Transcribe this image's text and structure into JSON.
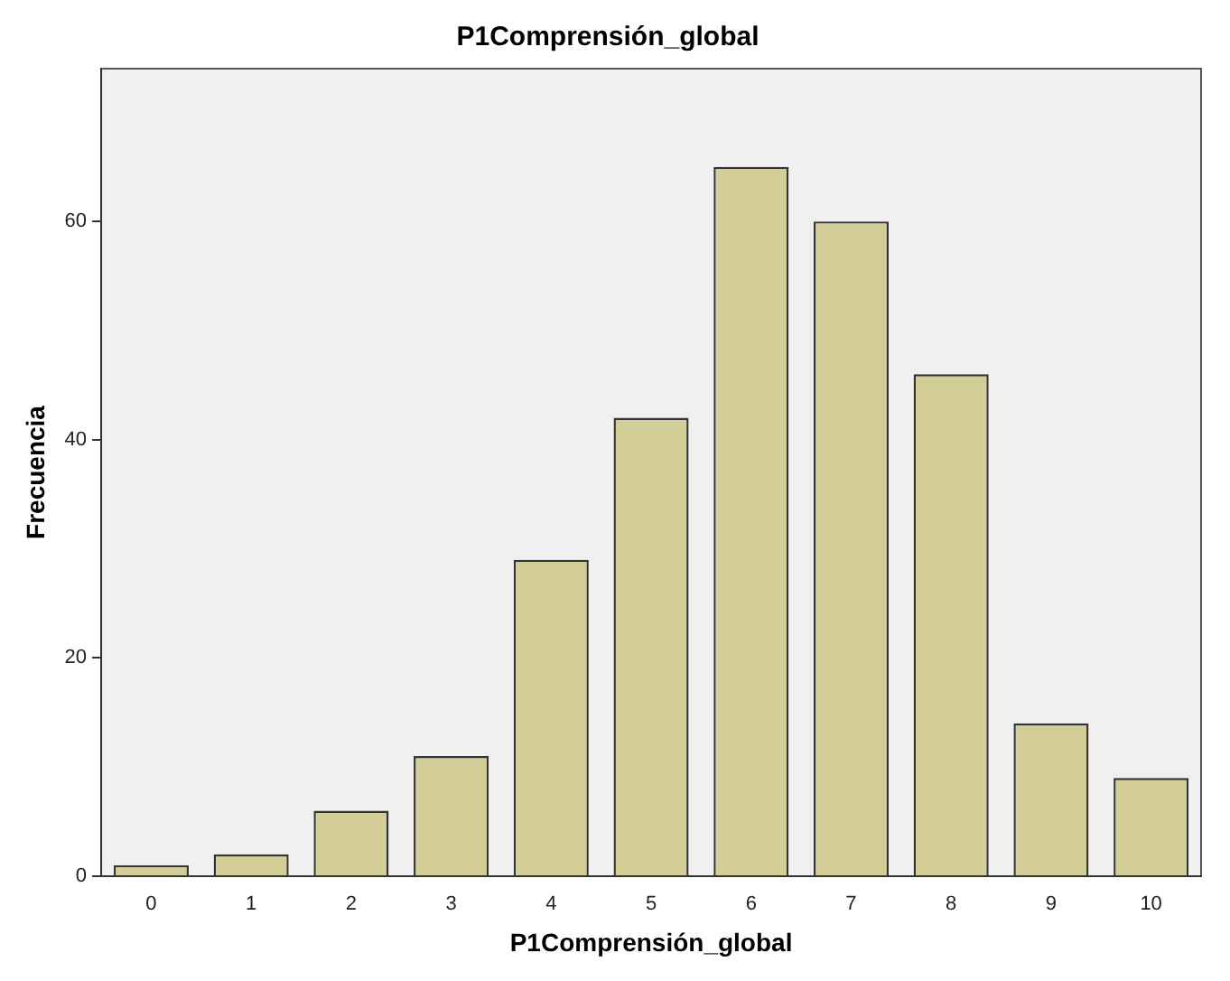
{
  "chart_data": {
    "type": "bar",
    "title": "P1Comprensión_global",
    "xlabel": "P1Comprensión_global",
    "ylabel": "Frecuencia",
    "categories": [
      "0",
      "1",
      "2",
      "3",
      "4",
      "5",
      "6",
      "7",
      "8",
      "9",
      "10"
    ],
    "values": [
      1,
      2,
      6,
      11,
      29,
      42,
      65,
      60,
      46,
      14,
      9
    ],
    "color": "#d3ce97",
    "ylim": [
      0,
      74
    ],
    "yticks": [
      0,
      20,
      40,
      60
    ],
    "grid": false,
    "legend": false
  }
}
